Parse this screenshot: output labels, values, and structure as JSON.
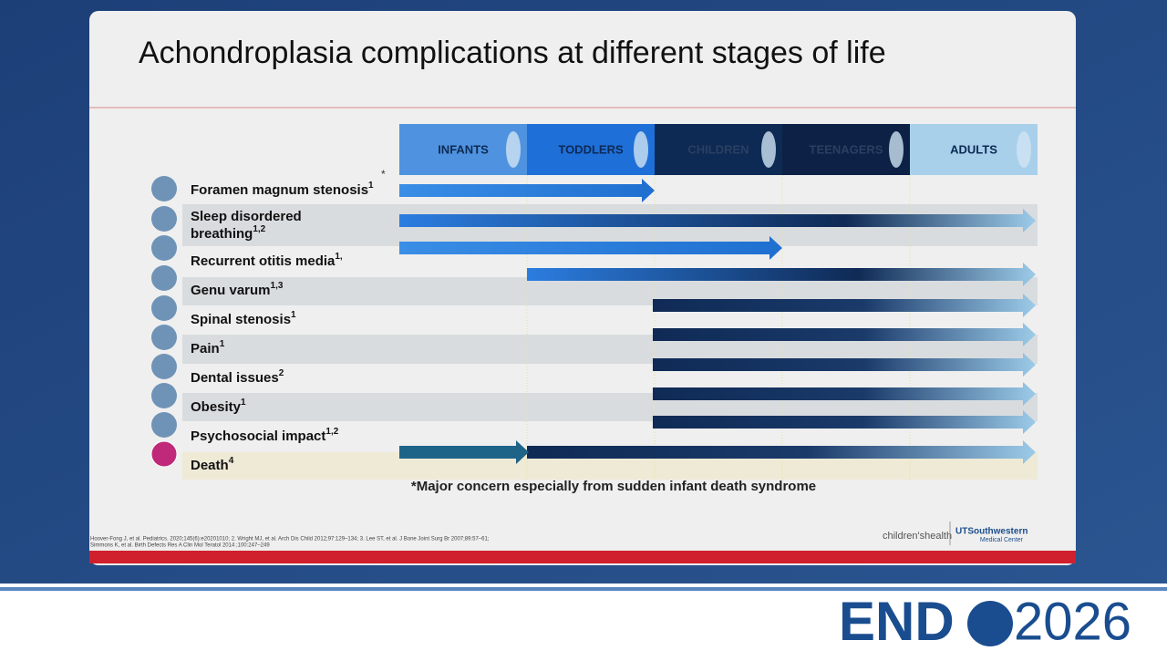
{
  "title": "Achondroplasia complications at different stages of life",
  "stages": [
    "INFANTS",
    "TODDLERS",
    "CHILDREN",
    "TEENAGERS",
    "ADULTS"
  ],
  "asterisk": "*",
  "rows": [
    {
      "lines": [
        "Foramen magnum stenosis"
      ],
      "sup": "1"
    },
    {
      "lines": [
        "Sleep disordered",
        "breathing"
      ],
      "sup": "1,2"
    },
    {
      "lines": [
        "Recurrent otitis media"
      ],
      "sup": "1,"
    },
    {
      "lines": [
        "Genu varum"
      ],
      "sup": "1,3"
    },
    {
      "lines": [
        "Spinal stenosis"
      ],
      "sup": "1"
    },
    {
      "lines": [
        "Pain"
      ],
      "sup": "1"
    },
    {
      "lines": [
        "Dental issues"
      ],
      "sup": "2"
    },
    {
      "lines": [
        "Obesity"
      ],
      "sup": "1"
    },
    {
      "lines": [
        "Psychosocial impact"
      ],
      "sup": "1,2"
    },
    {
      "lines": [
        "Death"
      ],
      "sup": "4"
    }
  ],
  "footnote": "*Major concern especially from sudden infant death syndrome",
  "references": [
    "Hoover-Fong J, et al. Pediatrics. 2020;145(6):e20201010; 2. Wright MJ, et al. Arch Dis Child 2012;97:129–134; 3. Lee ST, et al. J Bone Joint Surg Br 2007;89:57–61;",
    "Simmons K, et al. Birth Defects Res A Clin Mol Teratol 2014 ;100:247–249"
  ],
  "logos": {
    "left": "children'shealth",
    "right_top": "UTSouthwestern",
    "right_bottom": "Medical Center"
  },
  "event": {
    "name": "END",
    "year": "2026"
  }
}
